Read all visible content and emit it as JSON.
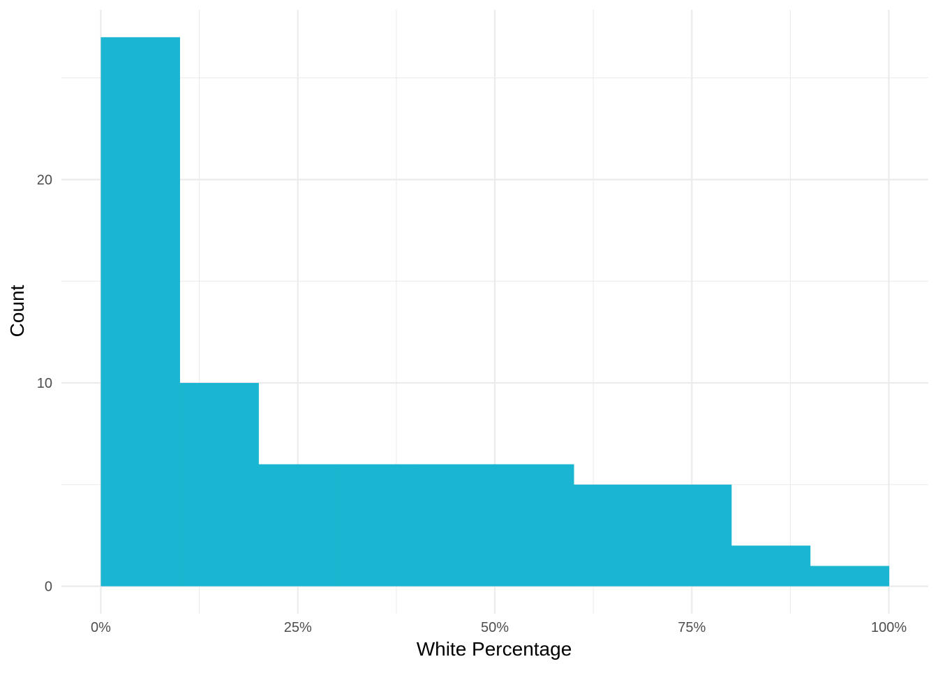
{
  "chart_data": {
    "type": "bar",
    "subtype": "histogram",
    "title": "",
    "xlabel": "White Percentage",
    "ylabel": "Count",
    "bins": [
      {
        "start": 0.0,
        "end": 0.1,
        "count": 27
      },
      {
        "start": 0.1,
        "end": 0.2,
        "count": 10
      },
      {
        "start": 0.2,
        "end": 0.3,
        "count": 6
      },
      {
        "start": 0.3,
        "end": 0.4,
        "count": 6
      },
      {
        "start": 0.4,
        "end": 0.5,
        "count": 6
      },
      {
        "start": 0.5,
        "end": 0.6,
        "count": 6
      },
      {
        "start": 0.6,
        "end": 0.7,
        "count": 5
      },
      {
        "start": 0.7,
        "end": 0.8,
        "count": 5
      },
      {
        "start": 0.8,
        "end": 0.9,
        "count": 2
      },
      {
        "start": 0.9,
        "end": 1.0,
        "count": 1
      }
    ],
    "xlim": [
      -0.05,
      1.05
    ],
    "ylim": [
      -1.35,
      28.35
    ],
    "x_ticks": [
      {
        "value": 0.0,
        "label": "0%"
      },
      {
        "value": 0.25,
        "label": "25%"
      },
      {
        "value": 0.5,
        "label": "50%"
      },
      {
        "value": 0.75,
        "label": "75%"
      },
      {
        "value": 1.0,
        "label": "100%"
      }
    ],
    "x_minor_ticks": [
      0.125,
      0.375,
      0.625,
      0.875
    ],
    "y_ticks": [
      {
        "value": 0,
        "label": "0"
      },
      {
        "value": 10,
        "label": "10"
      },
      {
        "value": 20,
        "label": "20"
      }
    ],
    "y_minor_ticks": [
      5,
      15,
      25
    ],
    "grid": true,
    "legend": "none",
    "colors": {
      "bar": "#1AB6D1",
      "grid": "#EBEBEB",
      "tick_text": "#4D4D4D",
      "axis_title": "#000000"
    }
  }
}
